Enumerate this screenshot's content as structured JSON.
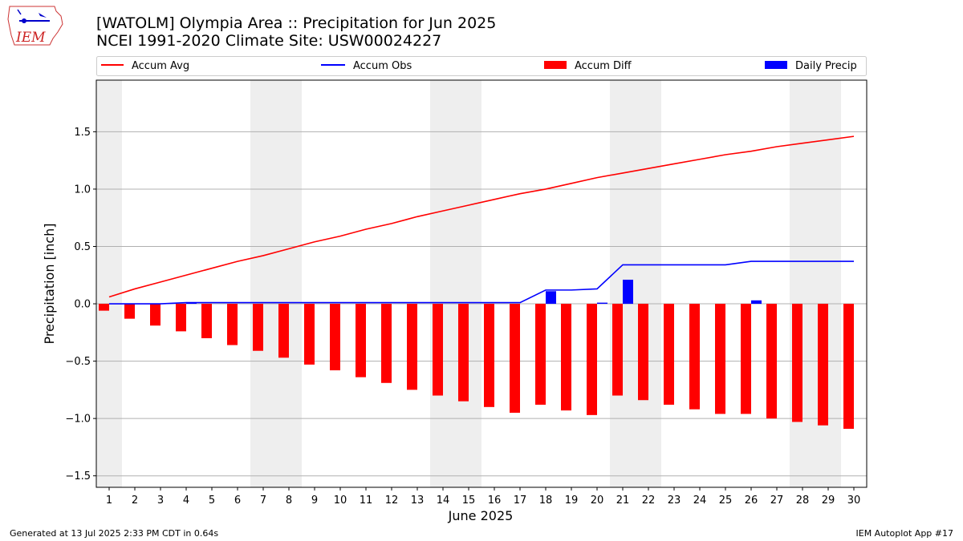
{
  "logo": {
    "text": "IEM"
  },
  "footer": {
    "left": "Generated at 13 Jul 2025 2:33 PM CDT in 0.64s",
    "right": "IEM Autoplot App #17"
  },
  "colors": {
    "avg": "#ff0000",
    "obs": "#0000ff",
    "diff": "#ff0000",
    "daily": "#0000ff",
    "weekend": "#eeeeee",
    "grid": "#b0b0b0"
  },
  "chart_data": {
    "type": "bar",
    "title": "[WATOLM] Olympia Area :: Precipitation for Jun 2025",
    "subtitle": "NCEI 1991-2020 Climate Site: USW00024227",
    "xlabel": "June 2025",
    "ylabel": "Precipitation [inch]",
    "ylim": [
      -1.6,
      1.95
    ],
    "yticks": [
      "−1.5",
      "−1.0",
      "−0.5",
      "0.0",
      "0.5",
      "1.0",
      "1.5"
    ],
    "ytick_values": [
      -1.5,
      -1.0,
      -0.5,
      0.0,
      0.5,
      1.0,
      1.5
    ],
    "grid": "horizontal",
    "legend_placement": "top",
    "categories": [
      "1",
      "2",
      "3",
      "4",
      "5",
      "6",
      "7",
      "8",
      "9",
      "10",
      "11",
      "12",
      "13",
      "14",
      "15",
      "16",
      "17",
      "18",
      "19",
      "20",
      "21",
      "22",
      "23",
      "24",
      "25",
      "26",
      "27",
      "28",
      "29",
      "30"
    ],
    "weekend_days": [
      1,
      7,
      8,
      14,
      15,
      21,
      22,
      28,
      29
    ],
    "series": [
      {
        "name": "Accum Avg",
        "kind": "line",
        "values": [
          0.06,
          0.13,
          0.19,
          0.25,
          0.31,
          0.37,
          0.42,
          0.48,
          0.54,
          0.59,
          0.65,
          0.7,
          0.76,
          0.81,
          0.86,
          0.91,
          0.96,
          1.0,
          1.05,
          1.1,
          1.14,
          1.18,
          1.22,
          1.26,
          1.3,
          1.33,
          1.37,
          1.4,
          1.43,
          1.46
        ]
      },
      {
        "name": "Accum Obs",
        "kind": "line",
        "values": [
          0.0,
          0.0,
          0.0,
          0.01,
          0.01,
          0.01,
          0.01,
          0.01,
          0.01,
          0.01,
          0.01,
          0.01,
          0.01,
          0.01,
          0.01,
          0.01,
          0.01,
          0.12,
          0.12,
          0.13,
          0.34,
          0.34,
          0.34,
          0.34,
          0.34,
          0.37,
          0.37,
          0.37,
          0.37,
          0.37
        ]
      },
      {
        "name": "Accum Diff",
        "kind": "bar",
        "values": [
          -0.06,
          -0.13,
          -0.19,
          -0.24,
          -0.3,
          -0.36,
          -0.41,
          -0.47,
          -0.53,
          -0.58,
          -0.64,
          -0.69,
          -0.75,
          -0.8,
          -0.85,
          -0.9,
          -0.95,
          -0.88,
          -0.93,
          -0.97,
          -0.8,
          -0.84,
          -0.88,
          -0.92,
          -0.96,
          -0.96,
          -1.0,
          -1.03,
          -1.06,
          -1.09
        ]
      },
      {
        "name": "Daily Precip",
        "kind": "bar",
        "values": [
          0,
          0,
          0,
          0.01,
          0,
          0,
          0,
          0,
          0,
          0,
          0,
          0,
          0,
          0,
          0,
          0,
          0,
          0.11,
          0,
          0.01,
          0.21,
          0,
          0,
          0,
          0,
          0.03,
          0,
          0,
          0,
          0
        ]
      }
    ]
  }
}
